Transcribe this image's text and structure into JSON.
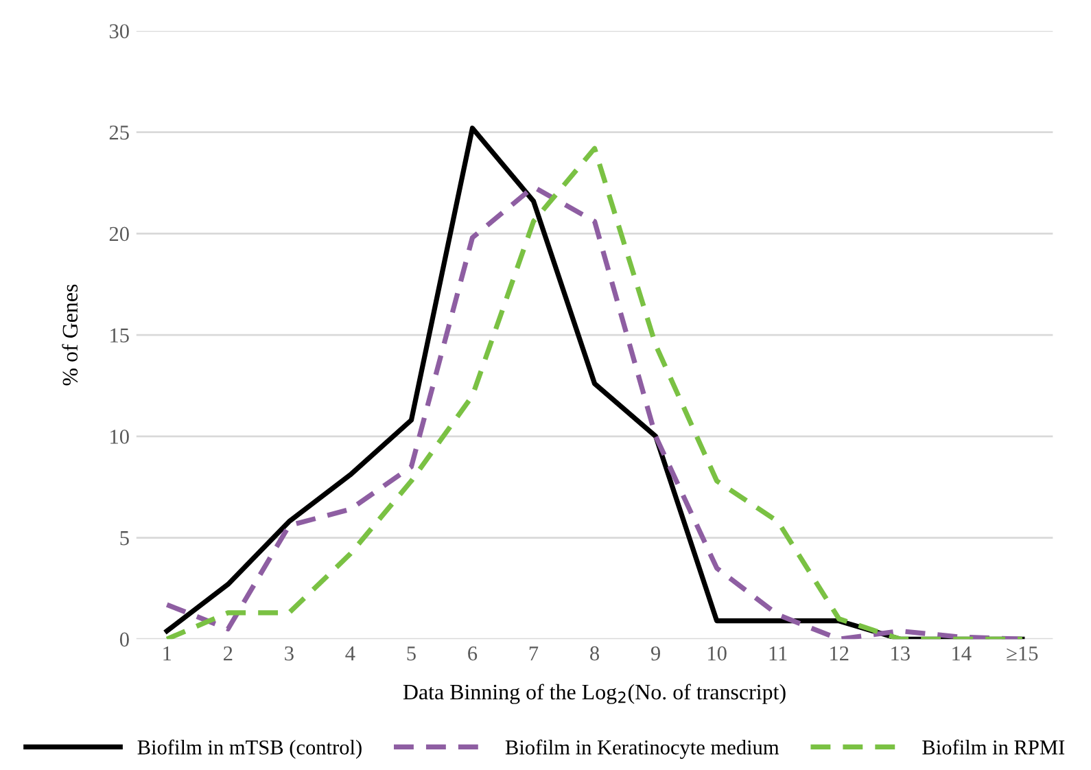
{
  "chart_data": {
    "type": "line",
    "xlabel": "Data Binning of the Log$_{2}$(No. of transcript)",
    "ylabel": "% of Genes",
    "categories": [
      "1",
      "2",
      "3",
      "4",
      "5",
      "6",
      "7",
      "8",
      "9",
      "10",
      "11",
      "12",
      "13",
      "14",
      "≥15"
    ],
    "series": [
      {
        "name": "Biofilm in mTSB (control)",
        "color": "#000000",
        "line_style": "solid",
        "values": [
          0.4,
          2.7,
          5.8,
          8.1,
          10.8,
          25.2,
          21.6,
          12.6,
          10.0,
          0.9,
          0.9,
          0.9,
          0,
          0,
          0
        ]
      },
      {
        "name": "Biofilm in Keratinocyte medium",
        "color": "#8e5ea2",
        "line_style": "dashed",
        "values": [
          1.7,
          0.5,
          5.6,
          6.4,
          8.5,
          19.8,
          22.3,
          20.6,
          10.0,
          3.5,
          1.2,
          0,
          0.4,
          0.1,
          0
        ]
      },
      {
        "name": "Biofilm in RPMI",
        "color": "#7ac143",
        "line_style": "dashed",
        "values": [
          0,
          1.3,
          1.3,
          4.2,
          7.8,
          12.0,
          20.6,
          24.2,
          14.5,
          7.8,
          5.8,
          1.0,
          0,
          0,
          0
        ]
      }
    ],
    "ylim": [
      0,
      30
    ],
    "yticks": [
      0,
      5,
      10,
      15,
      20,
      25,
      30
    ],
    "grid": "y",
    "legend": "bottom",
    "marker": "none"
  }
}
